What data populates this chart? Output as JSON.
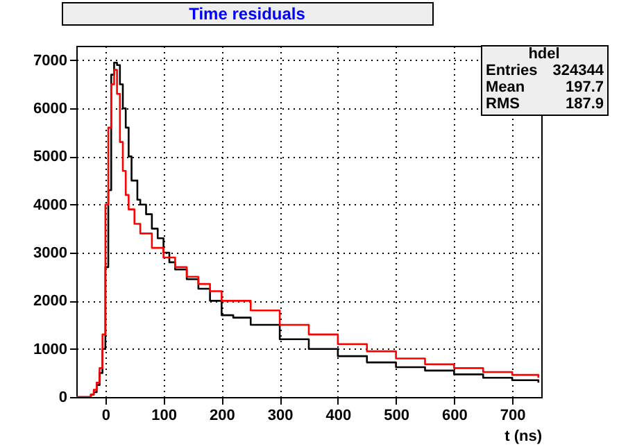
{
  "chart_data": {
    "type": "step",
    "title": "Time residuals",
    "xlabel": "t (ns)",
    "annotations": [
      "hdel",
      "Entries 324344",
      "Mean 197.7",
      "RMS 187.9"
    ],
    "xlim": [
      -50,
      750
    ],
    "xticks": [
      0,
      100,
      200,
      300,
      400,
      500,
      600,
      700
    ],
    "ylim": [
      0,
      7300
    ],
    "yticks": [
      0,
      1000,
      2000,
      3000,
      4000,
      5000,
      6000,
      7000
    ],
    "grid": true,
    "legend": false,
    "series": [
      {
        "color": "#000000",
        "x": [
          -50,
          -30,
          -25,
          -20,
          -15,
          -10,
          -5,
          0,
          5,
          10,
          15,
          20,
          25,
          30,
          35,
          40,
          45,
          50,
          55,
          60,
          70,
          80,
          90,
          100,
          110,
          120,
          140,
          160,
          180,
          200,
          220,
          250,
          300,
          350,
          400,
          450,
          500,
          550,
          600,
          650,
          700,
          745
        ],
        "values": [
          0,
          0,
          50,
          100,
          250,
          500,
          1000,
          2700,
          4300,
          6700,
          6950,
          6900,
          6500,
          6000,
          5600,
          5000,
          4500,
          4500,
          4100,
          4000,
          3800,
          3500,
          3300,
          3000,
          2800,
          2650,
          2450,
          2250,
          2000,
          1700,
          1650,
          1500,
          1200,
          1000,
          850,
          720,
          620,
          550,
          470,
          400,
          350,
          300
        ]
      },
      {
        "color": "#ff0000",
        "x": [
          -50,
          -30,
          -25,
          -20,
          -15,
          -10,
          -5,
          0,
          5,
          10,
          15,
          20,
          25,
          30,
          35,
          40,
          50,
          60,
          80,
          100,
          120,
          140,
          160,
          180,
          200,
          250,
          300,
          350,
          400,
          450,
          500,
          550,
          600,
          650,
          700,
          745
        ],
        "values": [
          0,
          0,
          50,
          150,
          300,
          600,
          1300,
          4000,
          5600,
          6500,
          6800,
          6300,
          5300,
          4700,
          4200,
          3900,
          3600,
          3400,
          3100,
          2900,
          2700,
          2500,
          2350,
          2200,
          2000,
          1800,
          1500,
          1300,
          1100,
          950,
          800,
          680,
          600,
          520,
          460,
          400
        ]
      }
    ]
  }
}
